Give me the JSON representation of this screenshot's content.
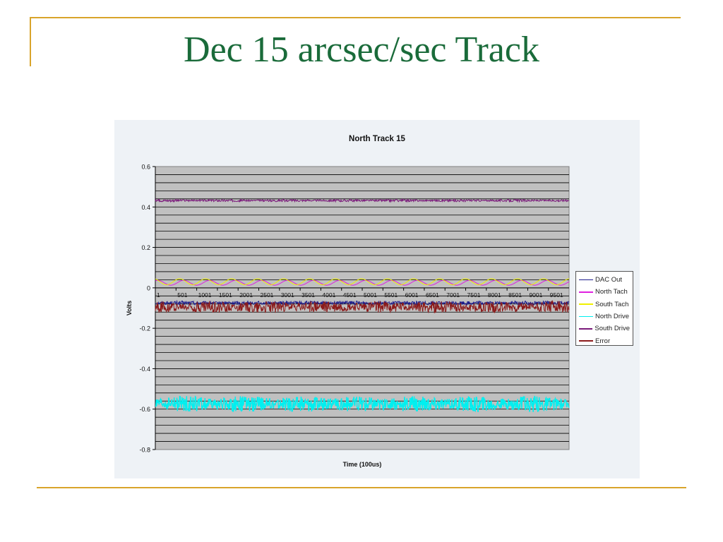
{
  "slide": {
    "title": "Dec 15 arcsec/sec Track",
    "accent_color": "#d9a42b",
    "title_color": "#1a6b3a"
  },
  "chart_data": {
    "type": "line",
    "title": "North Track 15",
    "xlabel": "Time (100us)",
    "ylabel": "Volts",
    "ylim": [
      -0.8,
      0.6
    ],
    "yticks": [
      "0.6",
      "0.4",
      "0.2",
      "0",
      "-0.2",
      "-0.4",
      "-0.6",
      "-0.8"
    ],
    "xticks": [
      "1",
      "501",
      "1001",
      "1501",
      "2001",
      "2501",
      "3001",
      "3501",
      "4001",
      "4501",
      "5001",
      "5501",
      "6001",
      "6501",
      "7001",
      "7501",
      "8001",
      "8501",
      "9001",
      "9501"
    ],
    "xlim": [
      1,
      10000
    ],
    "grid": true,
    "plot_background": "#c0c0c0",
    "legend_position": "right",
    "series": [
      {
        "name": "DAC Out",
        "color": "#1c1c8c",
        "mean": -0.075,
        "amplitude": 0.01
      },
      {
        "name": "North Tach",
        "color": "#e020e0",
        "mean": 0.025,
        "amplitude": 0.012
      },
      {
        "name": "South Tach",
        "color": "#f0f000",
        "mean": 0.03,
        "amplitude": 0.015
      },
      {
        "name": "North Drive",
        "color": "#00f0f0",
        "mean": -0.575,
        "amplitude": 0.04
      },
      {
        "name": "South Drive",
        "color": "#7a1a7a",
        "mean": 0.432,
        "amplitude": 0.006
      },
      {
        "name": "Error",
        "color": "#8b1a1a",
        "mean": -0.095,
        "amplitude": 0.03
      }
    ]
  }
}
